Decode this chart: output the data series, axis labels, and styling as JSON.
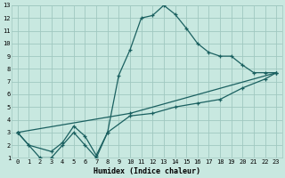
{
  "title": "",
  "xlabel": "Humidex (Indice chaleur)",
  "xlim": [
    -0.5,
    23.5
  ],
  "ylim": [
    1,
    13
  ],
  "xticks": [
    0,
    1,
    2,
    3,
    4,
    5,
    6,
    7,
    8,
    9,
    10,
    11,
    12,
    13,
    14,
    15,
    16,
    17,
    18,
    19,
    20,
    21,
    22,
    23
  ],
  "yticks": [
    1,
    2,
    3,
    4,
    5,
    6,
    7,
    8,
    9,
    10,
    11,
    12,
    13
  ],
  "bg_color": "#c8e8e0",
  "grid_color": "#a0c8c0",
  "line_color": "#1a6060",
  "line1_x": [
    0,
    1,
    2,
    3,
    4,
    5,
    6,
    7,
    8,
    9,
    10,
    11,
    12,
    13,
    14,
    15,
    16,
    17,
    18,
    19,
    20,
    21,
    22,
    23
  ],
  "line1_y": [
    3,
    2,
    1,
    1,
    2,
    3,
    2,
    1,
    3,
    7.5,
    9.5,
    12,
    12.2,
    13,
    12.3,
    11.2,
    10,
    9.3,
    9,
    9,
    8.3,
    7.7,
    7.7,
    7.7
  ],
  "line2_x": [
    0,
    1,
    3,
    4,
    5,
    6,
    7,
    8,
    10,
    12,
    14,
    16,
    18,
    20,
    22,
    23
  ],
  "line2_y": [
    3,
    2,
    1.5,
    2.2,
    3.5,
    2.7,
    1.2,
    3.0,
    4.3,
    4.5,
    5.0,
    5.3,
    5.6,
    6.5,
    7.2,
    7.7
  ],
  "line3_x": [
    0,
    10,
    23
  ],
  "line3_y": [
    3,
    4.5,
    7.7
  ],
  "marker": "+",
  "markersize": 3.5,
  "linewidth": 0.9,
  "xlabel_fontsize": 6.0,
  "tick_fontsize": 5.0
}
